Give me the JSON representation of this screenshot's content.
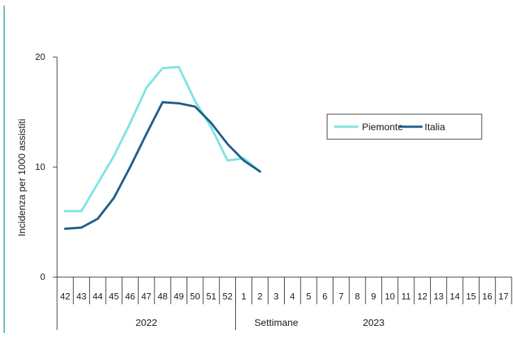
{
  "chart_data": {
    "type": "line",
    "title": "",
    "xlabel": "Settimane",
    "ylabel": "Incidenza per 1000 assistiti",
    "ylim": [
      0,
      20
    ],
    "yticks": [
      0,
      10,
      20
    ],
    "categories": [
      "42",
      "43",
      "44",
      "45",
      "46",
      "47",
      "48",
      "49",
      "50",
      "51",
      "52",
      "1",
      "2",
      "3",
      "4",
      "5",
      "6",
      "7",
      "8",
      "9",
      "10",
      "11",
      "12",
      "13",
      "14",
      "15",
      "16",
      "17"
    ],
    "groups": [
      {
        "label": "2022",
        "from": 0,
        "to": 10
      },
      {
        "label": "2023",
        "from": 11,
        "to": 27
      }
    ],
    "series": [
      {
        "name": "Piemonte",
        "color": "#7fe3e3",
        "values": [
          6.0,
          6.0,
          8.5,
          11.0,
          14.0,
          17.2,
          19.0,
          19.1,
          16.0,
          13.6,
          10.6,
          10.8,
          9.6,
          null,
          null,
          null,
          null,
          null,
          null,
          null,
          null,
          null,
          null,
          null,
          null,
          null,
          null,
          null
        ]
      },
      {
        "name": "Italia",
        "color": "#1f5f8b",
        "values": [
          4.4,
          4.5,
          5.3,
          7.2,
          10.0,
          13.0,
          15.9,
          15.8,
          15.5,
          14.0,
          12.1,
          10.6,
          9.6,
          null,
          null,
          null,
          null,
          null,
          null,
          null,
          null,
          null,
          null,
          null,
          null,
          null,
          null,
          null
        ]
      }
    ],
    "legend_position": "right",
    "grid": false
  }
}
